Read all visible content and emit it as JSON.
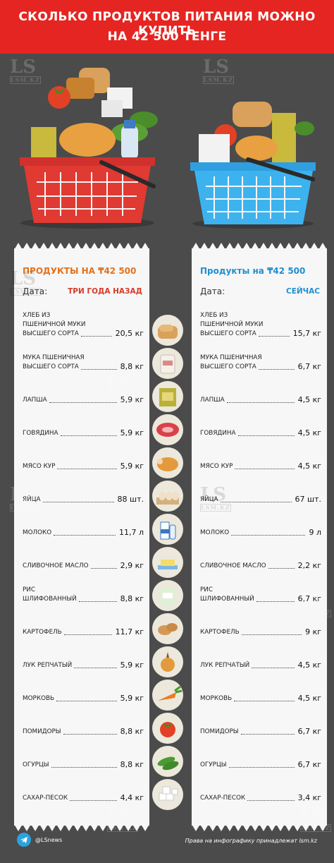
{
  "header": {
    "line1": "СКОЛЬКО ПРОДУКТОВ ПИТАНИЯ МОЖНО КУПИТЬ",
    "line2": "НА 42 500 ТЕНГЕ"
  },
  "watermark": {
    "logo": "LS",
    "sub": "LSM.KZ"
  },
  "left": {
    "title": "ПРОДУКТЫ НА ₸42 500",
    "date_label": "Дата:",
    "date_value": "ТРИ ГОДА НАЗАД"
  },
  "right": {
    "title": "Продукты на ₸42 500",
    "date_label": "Дата:",
    "date_value": "СЕЙЧАС"
  },
  "items": [
    {
      "name": "ХЛЕБ ИЗ\nПШЕНИЧНОЙ МУКИ\nВЫСШЕГО СОРТА",
      "old": "20,5 кг",
      "new": "15,7 кг",
      "icon": "bread-icon"
    },
    {
      "name": "МУКА ПШЕНИЧНАЯ\nВЫСШЕГО СОРТА",
      "old": "8,8 кг",
      "new": "6,7 кг",
      "icon": "flour-icon"
    },
    {
      "name": "ЛАПША",
      "old": "5,9 кг",
      "new": "4,5 кг",
      "icon": "noodles-icon"
    },
    {
      "name": "ГОВЯДИНА",
      "old": "5,9 кг",
      "new": "4,5 кг",
      "icon": "beef-icon"
    },
    {
      "name": "МЯСО КУР",
      "old": "5,9 кг",
      "new": "4,5 кг",
      "icon": "chicken-icon"
    },
    {
      "name": "ЯЙЦА",
      "old": "88 шт.",
      "new": "67 шт.",
      "icon": "eggs-icon"
    },
    {
      "name": "МОЛОКО",
      "old": "11,7 л",
      "new": "9 л",
      "icon": "milk-icon"
    },
    {
      "name": "СЛИВОЧНОЕ МАСЛО",
      "old": "2,9 кг",
      "new": "2,2 кг",
      "icon": "butter-icon"
    },
    {
      "name": "РИС\nШЛИФОВАННЫЙ",
      "old": "8,8 кг",
      "new": "6,7 кг",
      "icon": "rice-icon"
    },
    {
      "name": "КАРТОФЕЛЬ",
      "old": "11,7 кг",
      "new": "9 кг",
      "icon": "potato-icon"
    },
    {
      "name": "ЛУК РЕПЧАТЫЙ",
      "old": "5,9 кг",
      "new": "4,5 кг",
      "icon": "onion-icon"
    },
    {
      "name": "МОРКОВЬ",
      "old": "5,9 кг",
      "new": "4,5 кг",
      "icon": "carrot-icon"
    },
    {
      "name": "ПОМИДОРЫ",
      "old": "8,8 кг",
      "new": "6,7 кг",
      "icon": "tomato-icon"
    },
    {
      "name": "ОГУРЦЫ",
      "old": "8,8 кг",
      "new": "6,7 кг",
      "icon": "cucumber-icon"
    },
    {
      "name": "САХАР-ПЕСОК",
      "old": "4,4 кг",
      "new": "3,4 кг",
      "icon": "sugar-icon"
    }
  ],
  "footer": {
    "handle": "@LSnews",
    "copyright": "Права на инфографику принадлежат lsm.kz"
  },
  "colors": {
    "header": "#e52521",
    "background": "#4b4b4b",
    "left_accent": "#e2711d",
    "right_accent": "#1f8fd0"
  }
}
